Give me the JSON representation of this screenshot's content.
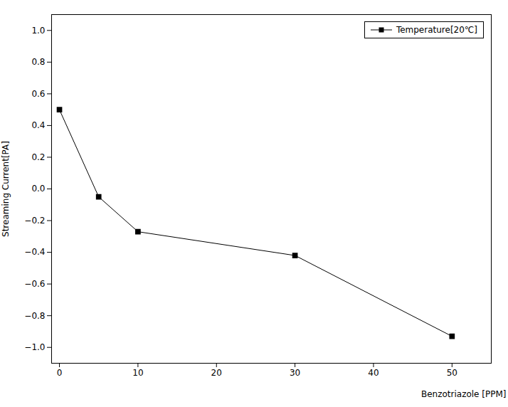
{
  "chart_data": {
    "type": "line",
    "x": [
      0,
      5,
      10,
      30,
      50
    ],
    "series": [
      {
        "name": "Temperature[20℃]",
        "color": "#000000",
        "marker": "square",
        "line_style": "solid",
        "values": [
          0.5,
          -0.05,
          -0.27,
          -0.42,
          -0.93
        ]
      }
    ],
    "xlabel": "Benzotriazole [PPM]",
    "ylabel": "Streaming Current[PA]",
    "xlim": [
      -1,
      55
    ],
    "ylim": [
      -1.1,
      1.1
    ],
    "xticks": [
      0,
      10,
      20,
      30,
      40,
      50
    ],
    "yticks": [
      {
        "value": -1.0,
        "label": "−1.0"
      },
      {
        "value": -0.8,
        "label": "−0.8"
      },
      {
        "value": -0.6,
        "label": "−0.6"
      },
      {
        "value": -0.4,
        "label": "−0.4"
      },
      {
        "value": -0.2,
        "label": "−0.2"
      },
      {
        "value": 0.0,
        "label": "0.0"
      },
      0.2,
      0.4,
      0.6,
      0.8,
      {
        "value": 1.0,
        "label": "1.0"
      }
    ],
    "grid": false,
    "legend": "upper right"
  }
}
